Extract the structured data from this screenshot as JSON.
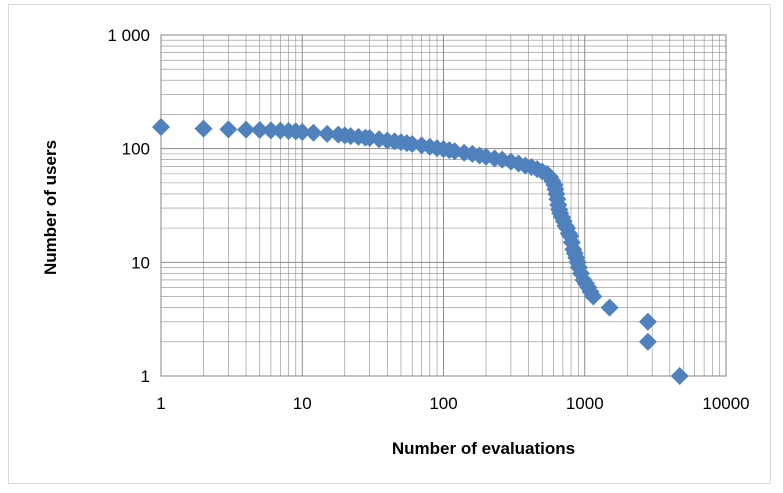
{
  "chart_data": {
    "type": "scatter",
    "title": "",
    "xlabel": "Number of evaluations",
    "ylabel": "Number of users",
    "xscale": "log",
    "yscale": "log",
    "xlim": [
      1,
      10000
    ],
    "ylim": [
      1,
      1000
    ],
    "x_tick_labels": [
      "1",
      "10",
      "100",
      "1000",
      "10000"
    ],
    "y_tick_labels": [
      "1",
      "10",
      "100",
      "1 000"
    ],
    "grid": "major and minor",
    "legend": "none",
    "marker": "diamond",
    "marker_color": "#4f81bd",
    "series": [
      {
        "points": [
          [
            1,
            155
          ],
          [
            2,
            150
          ],
          [
            3,
            148
          ],
          [
            4,
            147
          ],
          [
            5,
            146
          ],
          [
            6,
            145
          ],
          [
            7,
            144
          ],
          [
            8,
            143
          ],
          [
            9,
            142
          ],
          [
            10,
            140
          ],
          [
            12,
            138
          ],
          [
            15,
            135
          ],
          [
            18,
            133
          ],
          [
            20,
            131
          ],
          [
            22,
            129
          ],
          [
            25,
            127
          ],
          [
            28,
            125
          ],
          [
            30,
            124
          ],
          [
            35,
            121
          ],
          [
            40,
            118
          ],
          [
            45,
            116
          ],
          [
            50,
            114
          ],
          [
            55,
            112
          ],
          [
            60,
            110
          ],
          [
            70,
            107
          ],
          [
            80,
            104
          ],
          [
            90,
            101
          ],
          [
            100,
            99
          ],
          [
            110,
            97
          ],
          [
            120,
            95
          ],
          [
            140,
            92
          ],
          [
            160,
            90
          ],
          [
            180,
            87
          ],
          [
            200,
            85
          ],
          [
            230,
            82
          ],
          [
            260,
            80
          ],
          [
            300,
            77
          ],
          [
            340,
            74
          ],
          [
            380,
            71
          ],
          [
            420,
            69
          ],
          [
            460,
            66
          ],
          [
            500,
            63
          ],
          [
            540,
            60
          ],
          [
            570,
            56
          ],
          [
            590,
            52
          ],
          [
            610,
            48
          ],
          [
            620,
            44
          ],
          [
            630,
            40
          ],
          [
            640,
            36
          ],
          [
            650,
            32
          ],
          [
            660,
            29
          ],
          [
            670,
            27
          ],
          [
            690,
            25
          ],
          [
            710,
            23
          ],
          [
            730,
            21
          ],
          [
            750,
            20
          ],
          [
            770,
            18
          ],
          [
            790,
            17
          ],
          [
            810,
            15
          ],
          [
            830,
            13
          ],
          [
            850,
            12
          ],
          [
            870,
            11
          ],
          [
            890,
            10
          ],
          [
            910,
            9
          ],
          [
            940,
            8
          ],
          [
            980,
            7
          ],
          [
            1020,
            6.5
          ],
          [
            1060,
            6
          ],
          [
            1100,
            5.5
          ],
          [
            1150,
            5
          ],
          [
            1500,
            4
          ],
          [
            2800,
            3
          ],
          [
            2800,
            2
          ],
          [
            4700,
            1
          ]
        ]
      }
    ]
  }
}
